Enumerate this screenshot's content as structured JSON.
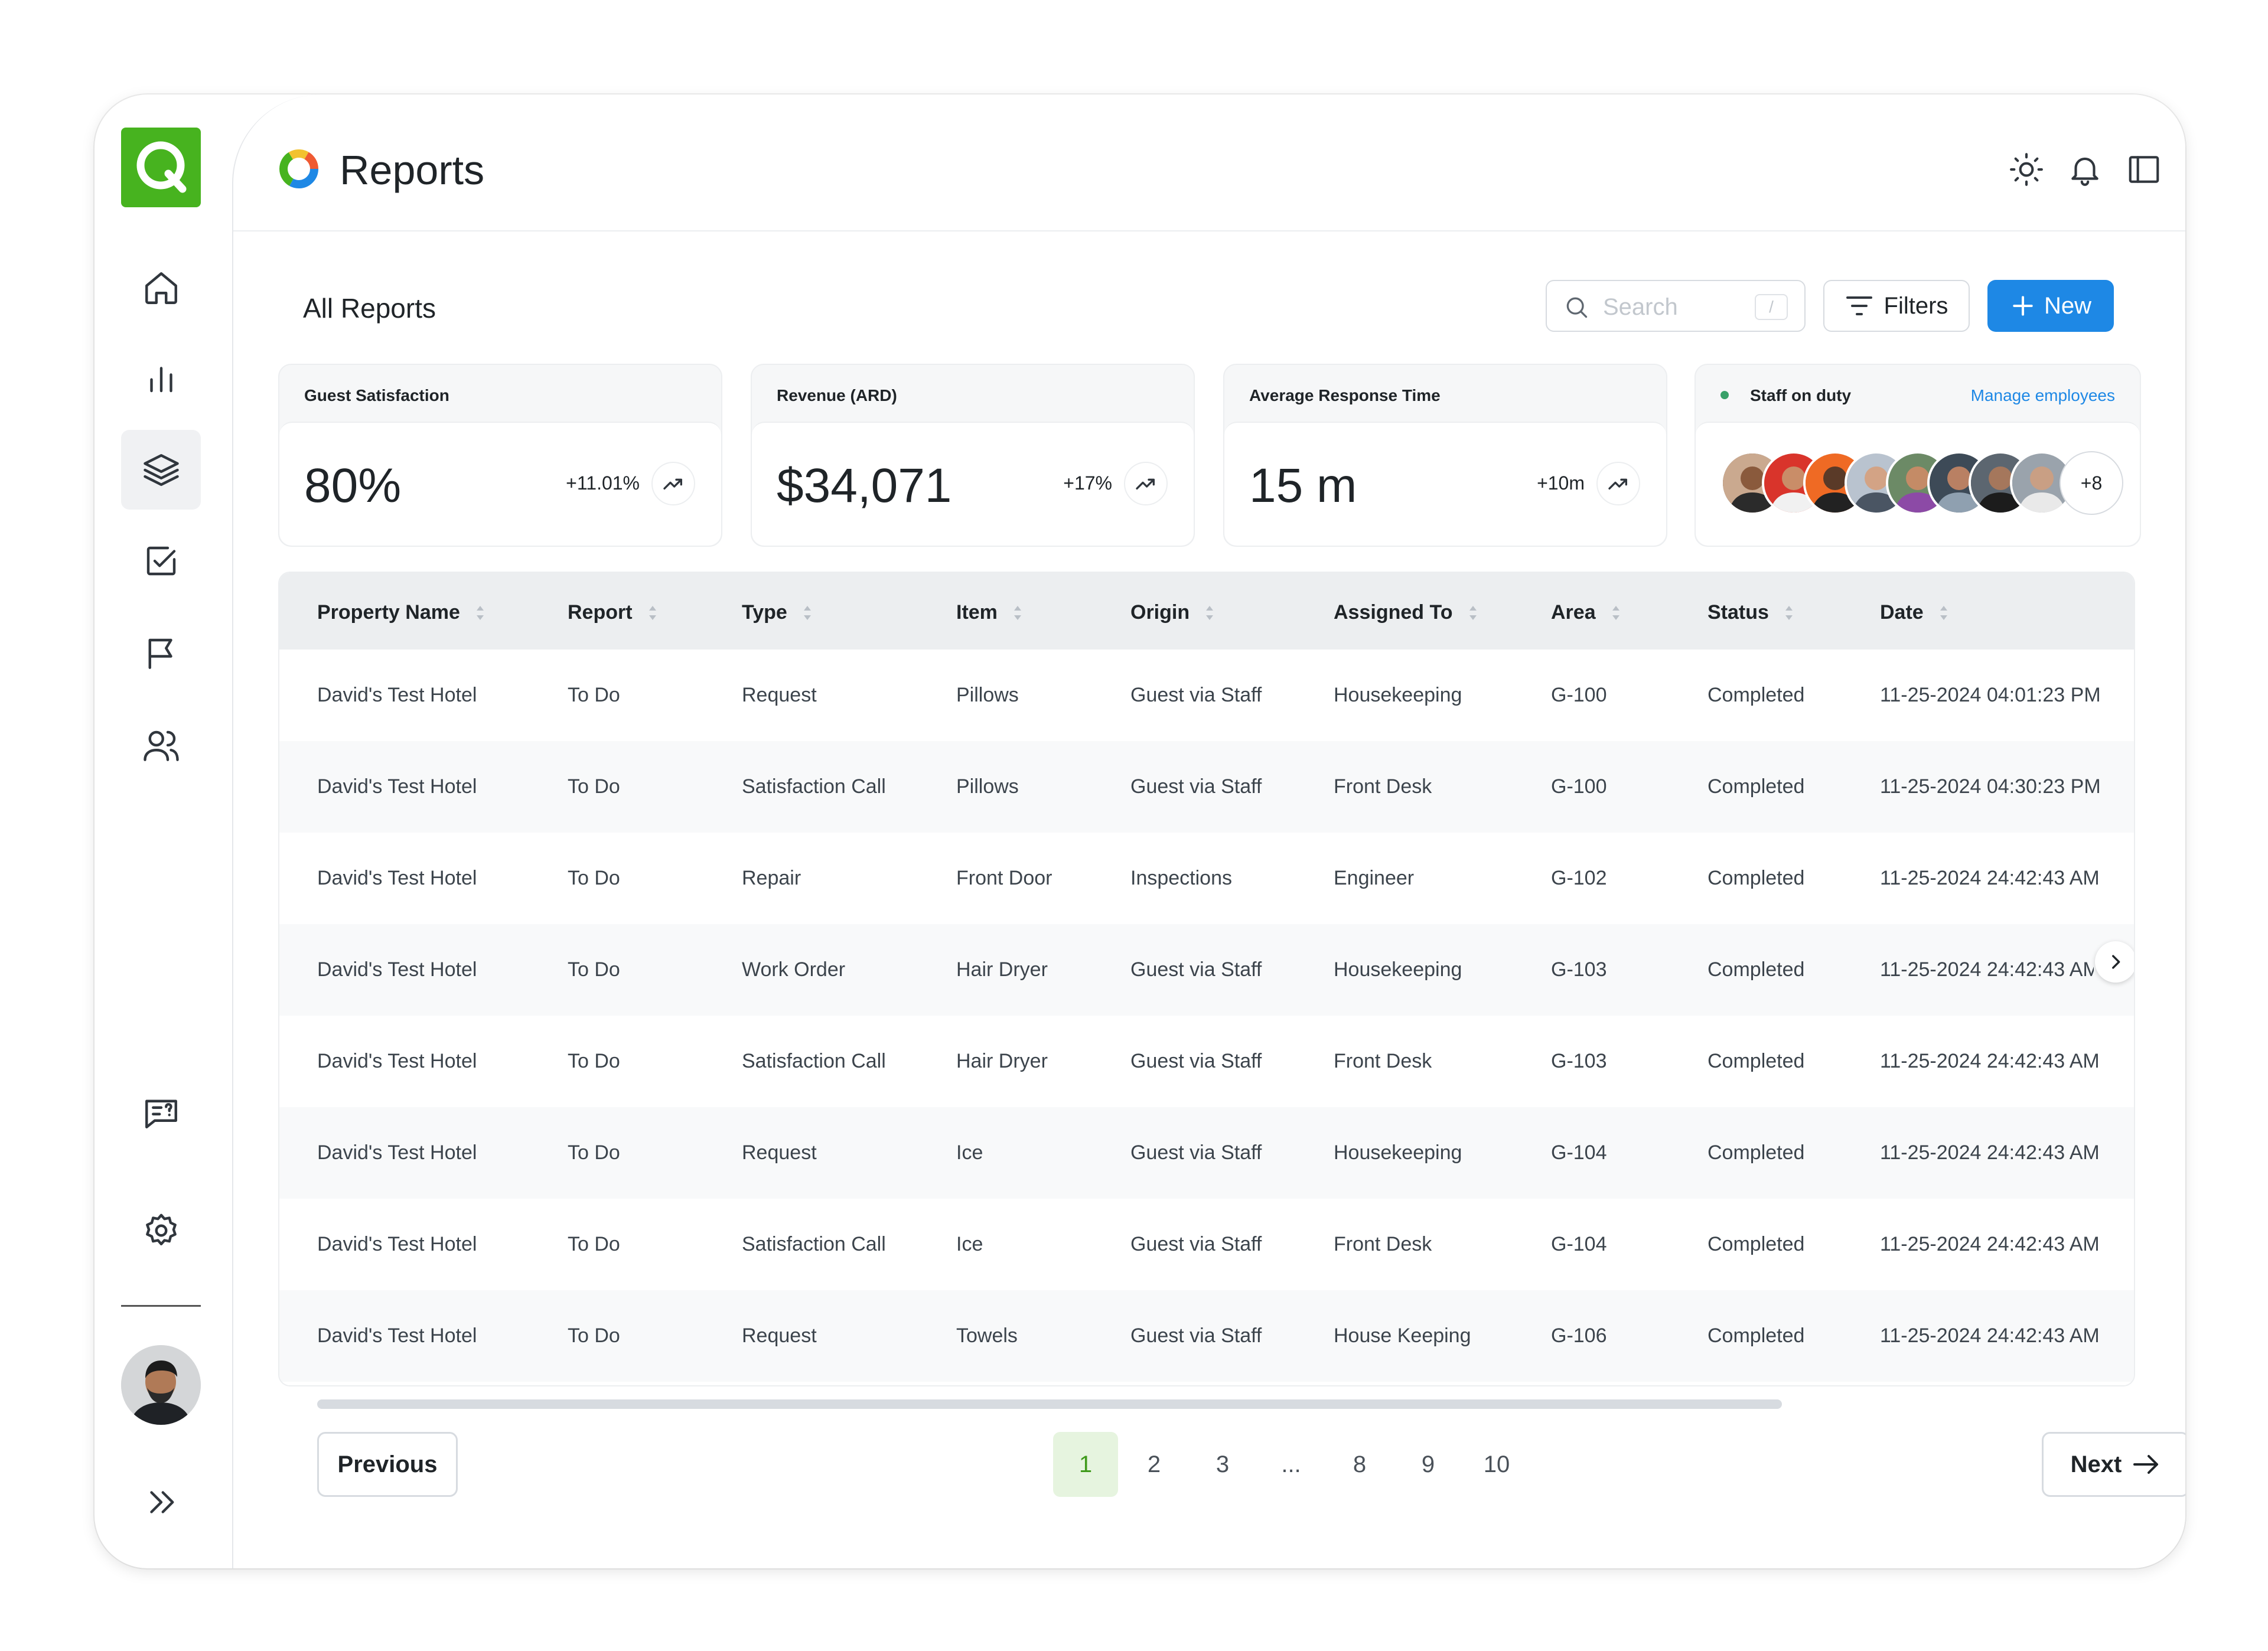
{
  "header": {
    "title": "Reports",
    "icons": [
      "sun-icon",
      "bell-icon",
      "sidebar-panel-icon"
    ]
  },
  "section": {
    "title": "All Reports",
    "search_placeholder": "Search",
    "search_shortcut": "/",
    "filters_label": "Filters",
    "new_label": "New"
  },
  "cards": {
    "satisfaction": {
      "label": "Guest Satisfaction",
      "value": "80%",
      "delta": "+11.01%"
    },
    "revenue": {
      "label": "Revenue (ARD)",
      "value": "$34,071",
      "delta": "+17%"
    },
    "response": {
      "label": "Average Response Time",
      "value": "15 m",
      "delta": "+10m"
    },
    "staff": {
      "label": "Staff on duty",
      "link": "Manage employees",
      "more": "+8"
    }
  },
  "table": {
    "columns": [
      "Property Name",
      "Report",
      "Type",
      "Item",
      "Origin",
      "Assigned To",
      "Area",
      "Status",
      "Date"
    ],
    "rows": [
      [
        "David's Test Hotel",
        "To Do",
        "Request",
        "Pillows",
        "Guest via Staff",
        "Housekeeping",
        "G-100",
        "Completed",
        "11-25-2024 04:01:23 PM"
      ],
      [
        "David's Test Hotel",
        "To Do",
        "Satisfaction Call",
        "Pillows",
        "Guest via Staff",
        "Front Desk",
        "G-100",
        "Completed",
        "11-25-2024 04:30:23 PM"
      ],
      [
        "David's Test Hotel",
        "To Do",
        "Repair",
        "Front Door",
        "Inspections",
        "Engineer",
        "G-102",
        "Completed",
        "11-25-2024 24:42:43 AM"
      ],
      [
        "David's Test Hotel",
        "To Do",
        "Work Order",
        "Hair Dryer",
        "Guest via Staff",
        "Housekeeping",
        "G-103",
        "Completed",
        "11-25-2024 24:42:43 AM"
      ],
      [
        "David's Test Hotel",
        "To Do",
        "Satisfaction Call",
        "Hair Dryer",
        "Guest via Staff",
        "Front Desk",
        "G-103",
        "Completed",
        "11-25-2024 24:42:43 AM"
      ],
      [
        "David's Test Hotel",
        "To Do",
        "Request",
        "Ice",
        "Guest via Staff",
        "Housekeeping",
        "G-104",
        "Completed",
        "11-25-2024 24:42:43 AM"
      ],
      [
        "David's Test Hotel",
        "To Do",
        "Satisfaction Call",
        "Ice",
        "Guest via Staff",
        "Front Desk",
        "G-104",
        "Completed",
        "11-25-2024 24:42:43 AM"
      ],
      [
        "David's Test Hotel",
        "To Do",
        "Request",
        "Towels",
        "Guest via Staff",
        "House Keeping",
        "G-106",
        "Completed",
        "11-25-2024 24:42:43 AM"
      ]
    ]
  },
  "pagination": {
    "previous": "Previous",
    "next": "Next",
    "pages": [
      "1",
      "2",
      "3",
      "...",
      "8",
      "9",
      "10"
    ],
    "current": "1"
  },
  "colors": {
    "brand": "#47b31f",
    "accent": "#1e88e5",
    "active_page_bg": "#e6f4df"
  }
}
